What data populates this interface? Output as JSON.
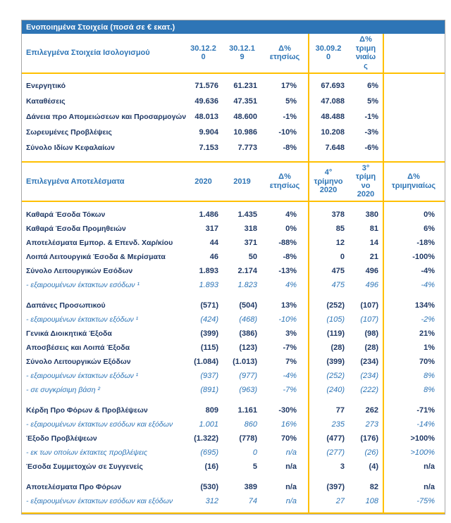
{
  "title": "Ενοποιημένα Στοιχεία (ποσά σε € εκατ.)",
  "colors": {
    "title_bar_bg": "#2E75B6",
    "header_text": "#2E75B6",
    "body_text": "#1F3864",
    "sub_row_text": "#2E75B6",
    "divider_yellow": "#FFC000"
  },
  "balance_sheet": {
    "section_title": "Επιλεγμένα Στοιχεία Ισολογισμού",
    "columns": [
      "30.12.20",
      "30.12.19",
      "Δ% ετησίως",
      "30.09.20",
      "Δ% τριμηνιαίως",
      ""
    ],
    "rows": [
      {
        "label": "Ενεργητικό",
        "values": [
          "71.576",
          "61.231",
          "17%",
          "67.693",
          "6%",
          ""
        ]
      },
      {
        "label": "Καταθέσεις",
        "values": [
          "49.636",
          "47.351",
          "5%",
          "47.088",
          "5%",
          ""
        ]
      },
      {
        "label": "Δάνεια προ Απομειώσεων και Προσαρμογών",
        "values": [
          "48.013",
          "48.600",
          "-1%",
          "48.488",
          "-1%",
          ""
        ]
      },
      {
        "label": "Σωρευμένες Προβλέψεις",
        "values": [
          "9.904",
          "10.986",
          "-10%",
          "10.208",
          "-3%",
          ""
        ]
      },
      {
        "label": "Σύνολο Ιδίων Κεφαλαίων",
        "values": [
          "7.153",
          "7.773",
          "-8%",
          "7.648",
          "-6%",
          ""
        ]
      }
    ]
  },
  "results": {
    "section_title": "Επιλεγμένα Αποτελέσματα",
    "columns": [
      "2020",
      "2019",
      "Δ% ετησίως",
      "4° τρίμηνο 2020",
      "3° τρίμηνο 2020",
      "Δ% τριμηνιαίως"
    ],
    "rows": [
      {
        "label": "Καθαρά Έσοδα Τόκων",
        "values": [
          "1.486",
          "1.435",
          "4%",
          "378",
          "380",
          "0%"
        ]
      },
      {
        "label": "Καθαρά Έσοδα Προμηθειών",
        "values": [
          "317",
          "318",
          "0%",
          "85",
          "81",
          "6%"
        ]
      },
      {
        "label": "Αποτελέσματα Εμπορ. & Επενδ. Χαρ/κίου",
        "values": [
          "44",
          "371",
          "-88%",
          "12",
          "14",
          "-18%"
        ]
      },
      {
        "label": "Λοιπά Λειτουργικά Έσοδα & Μερίσματα",
        "values": [
          "46",
          "50",
          "-8%",
          "0",
          "21",
          "-100%"
        ]
      },
      {
        "label": "Σύνολο Λειτουργικών Εσόδων",
        "values": [
          "1.893",
          "2.174",
          "-13%",
          "475",
          "496",
          "-4%"
        ]
      },
      {
        "label": "- εξαιρουμένων έκτακτων εσόδων ¹",
        "sub": true,
        "values": [
          "1.893",
          "1.823",
          "4%",
          "475",
          "496",
          "-4%"
        ]
      },
      {
        "gap": true
      },
      {
        "label": "Δαπάνες Προσωπικού",
        "values": [
          "(571)",
          "(504)",
          "13%",
          "(252)",
          "(107)",
          "134%"
        ]
      },
      {
        "label": "- εξαιρουμένων έκτακτων εξόδων ¹",
        "sub": true,
        "values": [
          "(424)",
          "(468)",
          "-10%",
          "(105)",
          "(107)",
          "-2%"
        ]
      },
      {
        "label": "Γενικά Διοικητικά Έξοδα",
        "values": [
          "(399)",
          "(386)",
          "3%",
          "(119)",
          "(98)",
          "21%"
        ]
      },
      {
        "label": "Αποσβέσεις και Λοιπά Έξοδα",
        "values": [
          "(115)",
          "(123)",
          "-7%",
          "(28)",
          "(28)",
          "1%"
        ]
      },
      {
        "label": "Σύνολο Λειτουργικών Εξόδων",
        "values": [
          "(1.084)",
          "(1.013)",
          "7%",
          "(399)",
          "(234)",
          "70%"
        ]
      },
      {
        "label": "- εξαιρουμένων έκτακτων εξόδων ¹",
        "sub": true,
        "values": [
          "(937)",
          "(977)",
          "-4%",
          "(252)",
          "(234)",
          "8%"
        ]
      },
      {
        "label": "- σε συγκρίσιμη βάση ²",
        "sub": true,
        "values": [
          "(891)",
          "(963)",
          "-7%",
          "(240)",
          "(222)",
          "8%"
        ]
      },
      {
        "gap": true
      },
      {
        "label": "Κέρδη Προ Φόρων & Προβλέψεων",
        "values": [
          "809",
          "1.161",
          "-30%",
          "77",
          "262",
          "-71%"
        ]
      },
      {
        "label": "- εξαιρουμένων έκτακτων εσόδων και εξόδων",
        "sub": true,
        "values": [
          "1.001",
          "860",
          "16%",
          "235",
          "273",
          "-14%"
        ]
      },
      {
        "label": "Έξοδο Προβλέψεων",
        "values": [
          "(1.322)",
          "(778)",
          "70%",
          "(477)",
          "(176)",
          ">100%"
        ]
      },
      {
        "label": "- εκ των οποίων έκτακτες προβλέψεις",
        "sub": true,
        "values": [
          "(695)",
          "0",
          "n/a",
          "(277)",
          "(26)",
          ">100%"
        ]
      },
      {
        "label": "Έσοδα Συμμετοχών σε Συγγενείς",
        "values": [
          "(16)",
          "5",
          "n/a",
          "3",
          "(4)",
          "n/a"
        ]
      },
      {
        "gap": true
      },
      {
        "label": "Αποτελέσματα Προ Φόρων",
        "values": [
          "(530)",
          "389",
          "n/a",
          "(397)",
          "82",
          "n/a"
        ]
      },
      {
        "label": "- εξαιρουμένων έκτακτων εσόδων και εξόδων",
        "sub": true,
        "values": [
          "312",
          "74",
          "n/a",
          "27",
          "108",
          "-75%"
        ]
      }
    ]
  }
}
